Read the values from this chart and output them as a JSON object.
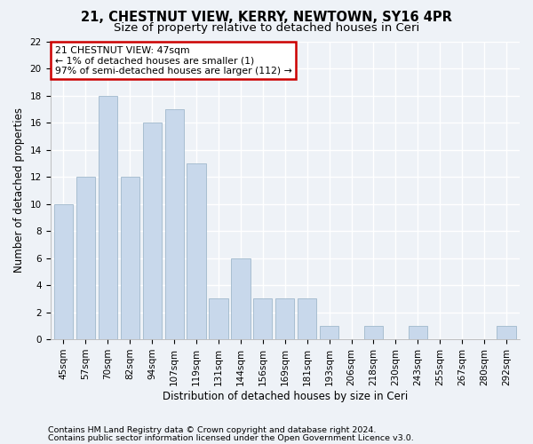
{
  "title1": "21, CHESTNUT VIEW, KERRY, NEWTOWN, SY16 4PR",
  "title2": "Size of property relative to detached houses in Ceri",
  "xlabel": "Distribution of detached houses by size in Ceri",
  "ylabel": "Number of detached properties",
  "categories": [
    "45sqm",
    "57sqm",
    "70sqm",
    "82sqm",
    "94sqm",
    "107sqm",
    "119sqm",
    "131sqm",
    "144sqm",
    "156sqm",
    "169sqm",
    "181sqm",
    "193sqm",
    "206sqm",
    "218sqm",
    "230sqm",
    "243sqm",
    "255sqm",
    "267sqm",
    "280sqm",
    "292sqm"
  ],
  "values": [
    10,
    12,
    18,
    12,
    16,
    17,
    13,
    3,
    6,
    3,
    3,
    3,
    1,
    0,
    1,
    0,
    1,
    0,
    0,
    0,
    1
  ],
  "bar_color": "#c8d8eb",
  "bar_edge_color": "#a0b8cc",
  "annotation_box_text": "21 CHESTNUT VIEW: 47sqm\n← 1% of detached houses are smaller (1)\n97% of semi-detached houses are larger (112) →",
  "annotation_box_color": "#ffffff",
  "annotation_box_edge_color": "#cc0000",
  "ylim": [
    0,
    22
  ],
  "yticks": [
    0,
    2,
    4,
    6,
    8,
    10,
    12,
    14,
    16,
    18,
    20,
    22
  ],
  "footer1": "Contains HM Land Registry data © Crown copyright and database right 2024.",
  "footer2": "Contains public sector information licensed under the Open Government Licence v3.0.",
  "bg_color": "#eef2f7",
  "grid_color": "#ffffff",
  "title1_fontsize": 10.5,
  "title2_fontsize": 9.5,
  "tick_fontsize": 7.5,
  "label_fontsize": 8.5,
  "annot_fontsize": 7.8,
  "footer_fontsize": 6.8
}
